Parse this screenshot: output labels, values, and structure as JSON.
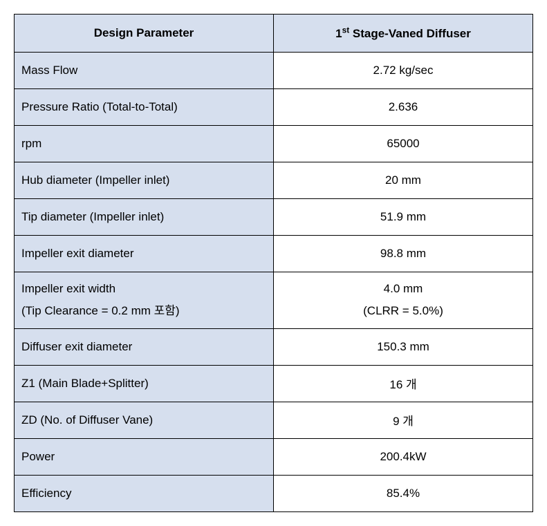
{
  "table": {
    "type": "table",
    "header_bg": "#d6dfee",
    "param_bg": "#d6dfee",
    "value_bg": "#ffffff",
    "border_color": "#000000",
    "text_color": "#000000",
    "font_size": 17,
    "col_widths_pct": [
      50,
      50
    ],
    "columns": [
      {
        "label": "Design Parameter",
        "align": "center",
        "bold": true
      },
      {
        "label_html": "1<sup>st</sup> Stage-Vaned Diffuser",
        "label_plain": "1st Stage-Vaned Diffuser",
        "align": "center",
        "bold": true
      }
    ],
    "rows": [
      {
        "param": "Mass Flow",
        "value": "2.72 kg/sec"
      },
      {
        "param": "Pressure Ratio (Total-to-Total)",
        "value": "2.636"
      },
      {
        "param": "rpm",
        "value": "65000"
      },
      {
        "param": "Hub diameter (Impeller inlet)",
        "value": "20 mm"
      },
      {
        "param": "Tip diameter (Impeller inlet)",
        "value": "51.9 mm"
      },
      {
        "param": "Impeller exit diameter",
        "value": "98.8 mm"
      },
      {
        "multi": true,
        "param_line1": "Impeller exit width",
        "param_line2": "(Tip Clearance = 0.2 mm 포함)",
        "value_line1": "4.0 mm",
        "value_line2": "(CLRR = 5.0%)"
      },
      {
        "param": "Diffuser exit diameter",
        "value": "150.3 mm"
      },
      {
        "param": "Z1 (Main Blade+Splitter)",
        "value": "16 개"
      },
      {
        "param": "ZD (No. of Diffuser Vane)",
        "value": "9 개"
      },
      {
        "param": "Power",
        "value": "200.4kW"
      },
      {
        "param": "Efficiency",
        "value": "85.4%"
      }
    ]
  }
}
